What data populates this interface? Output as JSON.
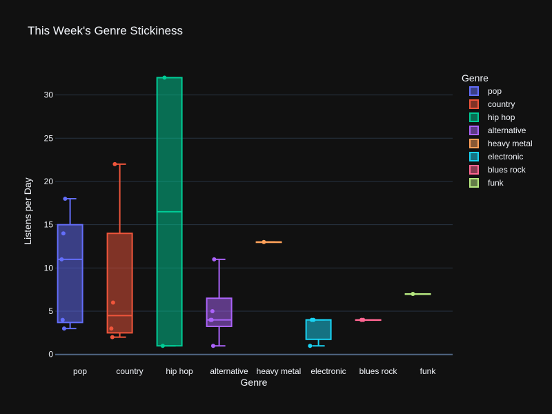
{
  "chart_data": {
    "type": "box",
    "title": "This Week's Genre Stickiness",
    "xlabel": "Genre",
    "ylabel": "Listens per Day",
    "ylim": [
      -0.5,
      33
    ],
    "yticks": [
      0,
      5,
      10,
      15,
      20,
      25,
      30
    ],
    "grid": true,
    "legend": {
      "title": "Genre",
      "placement": "top-right"
    },
    "series": [
      {
        "name": "pop",
        "color": "#636efa",
        "points": [
          18,
          14,
          11,
          4,
          3
        ],
        "q1": 3.7,
        "median": 11,
        "q3": 15,
        "lower_fence": 3,
        "upper_fence": 18
      },
      {
        "name": "country",
        "color": "#ef553b",
        "points": [
          22,
          6,
          3,
          2
        ],
        "q1": 2.5,
        "median": 4.5,
        "q3": 14,
        "lower_fence": 2,
        "upper_fence": 22
      },
      {
        "name": "hip hop",
        "color": "#00cc96",
        "points": [
          32,
          1
        ],
        "q1": 1,
        "median": 16.5,
        "q3": 32,
        "lower_fence": 1,
        "upper_fence": 32
      },
      {
        "name": "alternative",
        "color": "#ab63fa",
        "points": [
          11,
          5,
          4,
          4,
          1
        ],
        "q1": 3.25,
        "median": 4,
        "q3": 6.5,
        "lower_fence": 1,
        "upper_fence": 11
      },
      {
        "name": "heavy metal",
        "color": "#ffa15a",
        "points": [
          13
        ],
        "q1": 13,
        "median": 13,
        "q3": 13,
        "lower_fence": 13,
        "upper_fence": 13
      },
      {
        "name": "electronic",
        "color": "#19d3f3",
        "points": [
          4,
          4,
          1
        ],
        "q1": 1.75,
        "median": 4,
        "q3": 4,
        "lower_fence": 1,
        "upper_fence": 4
      },
      {
        "name": "blues rock",
        "color": "#ff6692",
        "points": [
          4,
          4
        ],
        "q1": 4,
        "median": 4,
        "q3": 4,
        "lower_fence": 4,
        "upper_fence": 4
      },
      {
        "name": "funk",
        "color": "#b6e880",
        "points": [
          7
        ],
        "q1": 7,
        "median": 7,
        "q3": 7,
        "lower_fence": 7,
        "upper_fence": 7
      }
    ]
  }
}
